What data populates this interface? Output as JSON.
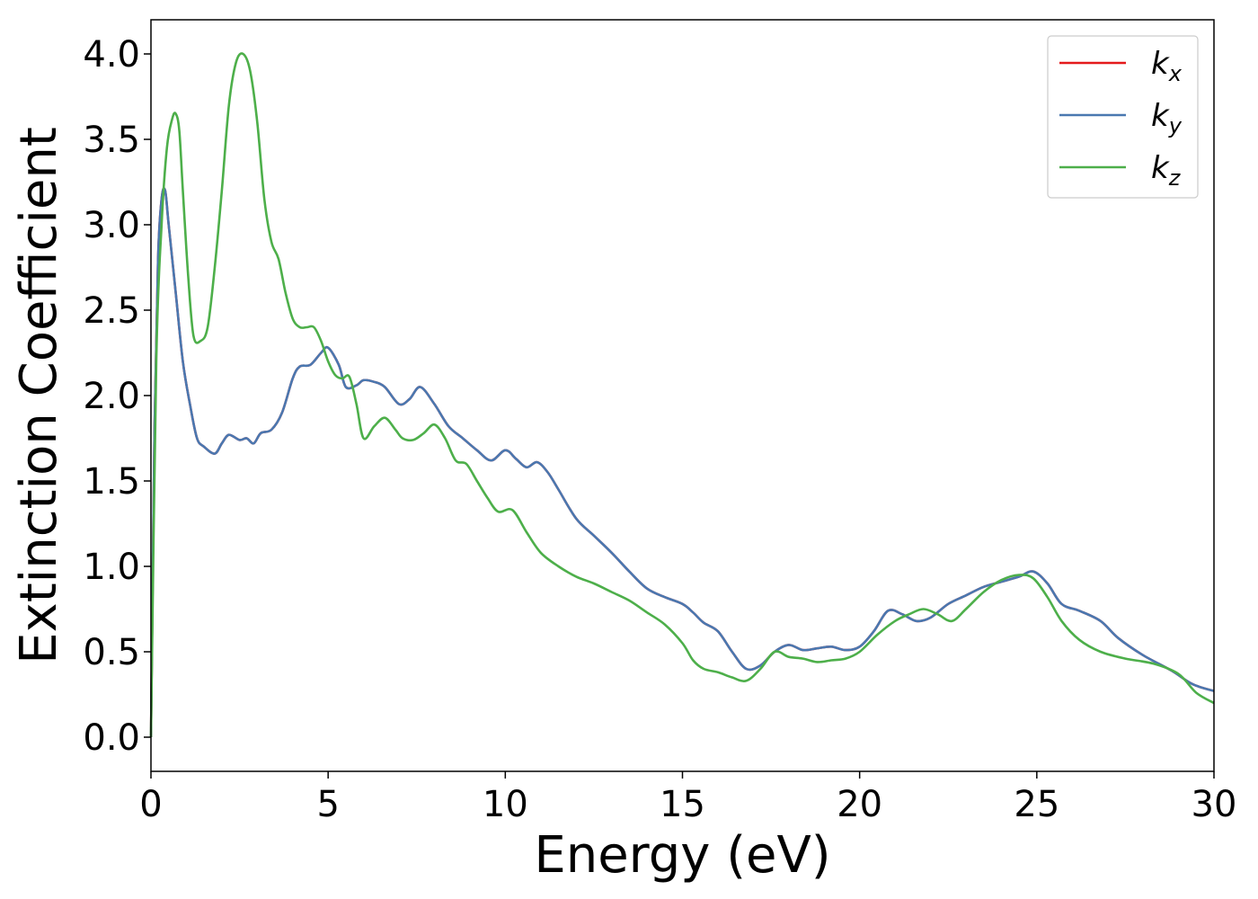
{
  "chart_data": {
    "type": "line",
    "xlabel": "Energy (eV)",
    "ylabel": "Extinction Coefficient",
    "xlim": [
      0,
      30
    ],
    "ylim": [
      -0.2,
      4.2
    ],
    "xticks": [
      0,
      5,
      10,
      15,
      20,
      25,
      30
    ],
    "xtick_labels": [
      "0",
      "5",
      "10",
      "15",
      "20",
      "25",
      "30"
    ],
    "yticks": [
      0.0,
      0.5,
      1.0,
      1.5,
      2.0,
      2.5,
      3.0,
      3.5,
      4.0
    ],
    "ytick_labels": [
      "0.0",
      "0.5",
      "1.0",
      "1.5",
      "2.0",
      "2.5",
      "3.0",
      "3.5",
      "4.0"
    ],
    "grid": false,
    "legend_position": "top-right",
    "series": [
      {
        "name": "k",
        "subscript": "x",
        "color": "#e41a1c",
        "x": [
          0,
          0.1,
          0.2,
          0.3,
          0.4,
          0.5,
          0.7,
          0.9,
          1.1,
          1.3,
          1.5,
          1.8,
          2.0,
          2.2,
          2.5,
          2.7,
          2.9,
          3.1,
          3.4,
          3.7,
          4.0,
          4.2,
          4.5,
          4.8,
          5.0,
          5.3,
          5.5,
          5.8,
          6.0,
          6.3,
          6.6,
          7.0,
          7.3,
          7.6,
          8.0,
          8.4,
          8.8,
          9.2,
          9.6,
          10.0,
          10.3,
          10.6,
          10.9,
          11.2,
          11.5,
          12.0,
          12.5,
          13.0,
          13.5,
          14.0,
          14.5,
          15.0,
          15.3,
          15.6,
          16.0,
          16.4,
          16.8,
          17.2,
          17.6,
          18.0,
          18.4,
          18.8,
          19.2,
          19.6,
          20.0,
          20.4,
          20.8,
          21.2,
          21.6,
          22.0,
          22.5,
          23.0,
          23.5,
          24.0,
          24.5,
          24.9,
          25.3,
          25.7,
          26.2,
          26.8,
          27.3,
          28.0,
          28.8,
          29.4,
          30.0
        ],
        "values": [
          0.0,
          1.8,
          2.8,
          3.15,
          3.2,
          3.0,
          2.6,
          2.2,
          1.95,
          1.75,
          1.7,
          1.66,
          1.72,
          1.77,
          1.74,
          1.75,
          1.72,
          1.78,
          1.8,
          1.9,
          2.1,
          2.17,
          2.18,
          2.25,
          2.28,
          2.18,
          2.05,
          2.06,
          2.09,
          2.08,
          2.05,
          1.95,
          1.98,
          2.05,
          1.95,
          1.82,
          1.75,
          1.68,
          1.62,
          1.68,
          1.63,
          1.58,
          1.61,
          1.55,
          1.45,
          1.28,
          1.18,
          1.08,
          0.97,
          0.87,
          0.82,
          0.78,
          0.73,
          0.67,
          0.62,
          0.5,
          0.4,
          0.42,
          0.5,
          0.54,
          0.51,
          0.52,
          0.53,
          0.51,
          0.53,
          0.62,
          0.74,
          0.72,
          0.68,
          0.7,
          0.78,
          0.83,
          0.88,
          0.91,
          0.94,
          0.97,
          0.9,
          0.78,
          0.74,
          0.68,
          0.58,
          0.48,
          0.39,
          0.31,
          0.27
        ]
      },
      {
        "name": "k",
        "subscript": "y",
        "color": "#4a78b0",
        "x": [
          0,
          0.1,
          0.2,
          0.3,
          0.4,
          0.5,
          0.7,
          0.9,
          1.1,
          1.3,
          1.5,
          1.8,
          2.0,
          2.2,
          2.5,
          2.7,
          2.9,
          3.1,
          3.4,
          3.7,
          4.0,
          4.2,
          4.5,
          4.8,
          5.0,
          5.3,
          5.5,
          5.8,
          6.0,
          6.3,
          6.6,
          7.0,
          7.3,
          7.6,
          8.0,
          8.4,
          8.8,
          9.2,
          9.6,
          10.0,
          10.3,
          10.6,
          10.9,
          11.2,
          11.5,
          12.0,
          12.5,
          13.0,
          13.5,
          14.0,
          14.5,
          15.0,
          15.3,
          15.6,
          16.0,
          16.4,
          16.8,
          17.2,
          17.6,
          18.0,
          18.4,
          18.8,
          19.2,
          19.6,
          20.0,
          20.4,
          20.8,
          21.2,
          21.6,
          22.0,
          22.5,
          23.0,
          23.5,
          24.0,
          24.5,
          24.9,
          25.3,
          25.7,
          26.2,
          26.8,
          27.3,
          28.0,
          28.8,
          29.4,
          30.0
        ],
        "values": [
          0.0,
          1.8,
          2.8,
          3.15,
          3.2,
          3.0,
          2.6,
          2.2,
          1.95,
          1.75,
          1.7,
          1.66,
          1.72,
          1.77,
          1.74,
          1.75,
          1.72,
          1.78,
          1.8,
          1.9,
          2.1,
          2.17,
          2.18,
          2.25,
          2.28,
          2.18,
          2.05,
          2.06,
          2.09,
          2.08,
          2.05,
          1.95,
          1.98,
          2.05,
          1.95,
          1.82,
          1.75,
          1.68,
          1.62,
          1.68,
          1.63,
          1.58,
          1.61,
          1.55,
          1.45,
          1.28,
          1.18,
          1.08,
          0.97,
          0.87,
          0.82,
          0.78,
          0.73,
          0.67,
          0.62,
          0.5,
          0.4,
          0.42,
          0.5,
          0.54,
          0.51,
          0.52,
          0.53,
          0.51,
          0.53,
          0.62,
          0.74,
          0.72,
          0.68,
          0.7,
          0.78,
          0.83,
          0.88,
          0.91,
          0.94,
          0.97,
          0.9,
          0.78,
          0.74,
          0.68,
          0.58,
          0.48,
          0.39,
          0.31,
          0.27
        ]
      },
      {
        "name": "k",
        "subscript": "z",
        "color": "#4daf4a",
        "x": [
          0,
          0.15,
          0.3,
          0.45,
          0.6,
          0.7,
          0.8,
          0.9,
          1.05,
          1.2,
          1.4,
          1.6,
          1.8,
          2.0,
          2.2,
          2.4,
          2.6,
          2.8,
          3.0,
          3.2,
          3.4,
          3.6,
          3.8,
          4.0,
          4.2,
          4.4,
          4.6,
          4.8,
          5.0,
          5.2,
          5.4,
          5.6,
          5.8,
          6.0,
          6.3,
          6.6,
          6.9,
          7.1,
          7.4,
          7.7,
          8.0,
          8.3,
          8.6,
          8.9,
          9.2,
          9.5,
          9.8,
          10.2,
          10.6,
          11.0,
          11.5,
          12.0,
          12.5,
          13.0,
          13.5,
          14.0,
          14.5,
          15.0,
          15.3,
          15.6,
          16.0,
          16.4,
          16.8,
          17.2,
          17.6,
          18.0,
          18.4,
          18.8,
          19.2,
          19.6,
          20.0,
          20.5,
          21.0,
          21.4,
          21.8,
          22.2,
          22.6,
          23.0,
          23.5,
          24.0,
          24.5,
          24.9,
          25.3,
          25.7,
          26.2,
          26.8,
          27.5,
          28.3,
          29.0,
          29.5,
          30.0
        ],
        "values": [
          0.0,
          2.2,
          3.0,
          3.45,
          3.62,
          3.65,
          3.55,
          3.2,
          2.7,
          2.35,
          2.32,
          2.4,
          2.75,
          3.2,
          3.7,
          3.95,
          4.0,
          3.9,
          3.6,
          3.15,
          2.9,
          2.8,
          2.6,
          2.45,
          2.4,
          2.4,
          2.4,
          2.32,
          2.2,
          2.12,
          2.1,
          2.11,
          1.95,
          1.75,
          1.82,
          1.87,
          1.8,
          1.75,
          1.74,
          1.78,
          1.83,
          1.75,
          1.62,
          1.6,
          1.5,
          1.4,
          1.32,
          1.33,
          1.2,
          1.08,
          1.0,
          0.94,
          0.9,
          0.85,
          0.8,
          0.73,
          0.66,
          0.55,
          0.45,
          0.4,
          0.38,
          0.35,
          0.33,
          0.4,
          0.5,
          0.47,
          0.46,
          0.44,
          0.45,
          0.46,
          0.5,
          0.6,
          0.68,
          0.72,
          0.75,
          0.72,
          0.68,
          0.75,
          0.85,
          0.92,
          0.95,
          0.93,
          0.82,
          0.68,
          0.57,
          0.5,
          0.46,
          0.43,
          0.37,
          0.26,
          0.2
        ]
      }
    ]
  }
}
